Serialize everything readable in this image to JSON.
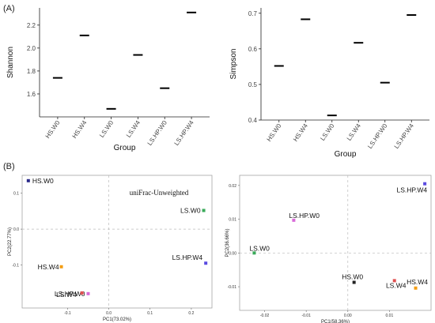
{
  "panel_labels": {
    "a": "(A)",
    "b": "(B)"
  },
  "chart_data": [
    {
      "type": "scatter",
      "markers": "horizontal-bar",
      "xlabel": "Group",
      "ylabel": "Shannon",
      "categories": [
        "HS.W0",
        "HS.W4",
        "LS.W0",
        "LS.W4",
        "LS.HP.W0",
        "LS.HP.W4"
      ],
      "values": [
        1.74,
        2.11,
        1.47,
        1.94,
        1.65,
        2.31
      ],
      "ylim": [
        1.4,
        2.35
      ],
      "yticks": [
        "1.6",
        "1.8",
        "2.0",
        "2.2"
      ],
      "grid": false
    },
    {
      "type": "scatter",
      "markers": "horizontal-bar",
      "xlabel": "Group",
      "ylabel": "Simpson",
      "categories": [
        "HS.W0",
        "HS.W4",
        "LS.W0",
        "LS.W4",
        "LS.HP.W0",
        "LS.HP.W4"
      ],
      "values": [
        0.552,
        0.683,
        0.413,
        0.617,
        0.505,
        0.695
      ],
      "ylim": [
        0.4,
        0.715
      ],
      "yticks": [
        "0.4",
        "0.5",
        "0.6",
        "0.7"
      ],
      "grid": false
    },
    {
      "type": "scatter",
      "annotation": "uniFrac-Unweighted",
      "xlabel": "PC1(73.02%)",
      "ylabel": "PC2(22.77%)",
      "xlim": [
        -0.21,
        0.25
      ],
      "ylim": [
        -0.22,
        0.15
      ],
      "xticks": [
        "-0.1",
        "0.0",
        "0.1",
        "0.2"
      ],
      "yticks": [
        "-0.1",
        "0.0",
        "0.1"
      ],
      "reference_lines": [
        0,
        0
      ],
      "points": [
        {
          "label": "HS.W0",
          "x": -0.195,
          "y": 0.135,
          "color": "#2a2a8a"
        },
        {
          "label": "LS.W0",
          "x": 0.23,
          "y": 0.052,
          "color": "#3aaa5a"
        },
        {
          "label": "LS.HP.W4",
          "x": 0.235,
          "y": -0.095,
          "color": "#5a4ae0"
        },
        {
          "label": "HS.W4",
          "x": -0.115,
          "y": -0.105,
          "color": "#f39c12"
        },
        {
          "label": "LS.HP.W0",
          "x": -0.05,
          "y": -0.18,
          "color": "#d86ad8"
        },
        {
          "label": "LS.W4",
          "x": -0.065,
          "y": -0.178,
          "color": "#e05050"
        }
      ]
    },
    {
      "type": "scatter",
      "xlabel": "PC1(58.36%)",
      "ylabel": "PC2(36.66%)",
      "xlim": [
        -0.026,
        0.02
      ],
      "ylim": [
        -0.017,
        0.023
      ],
      "xticks": [
        "-0.02",
        "-0.01",
        "0.00",
        "0.01"
      ],
      "yticks": [
        "-0.01",
        "0.00",
        "0.01",
        "0.02"
      ],
      "reference_lines": [
        0,
        0
      ],
      "points": [
        {
          "label": "LS.HP.W4",
          "x": 0.0185,
          "y": 0.0205,
          "color": "#5a4ae0"
        },
        {
          "label": "LS.HP.W0",
          "x": -0.013,
          "y": 0.0097,
          "color": "#d86ad8"
        },
        {
          "label": "LS.W0",
          "x": -0.0225,
          "y": 0.0,
          "color": "#3aaa5a"
        },
        {
          "label": "HS.W0",
          "x": 0.0015,
          "y": -0.0087,
          "color": "#222222"
        },
        {
          "label": "LS.W4",
          "x": 0.0112,
          "y": -0.0082,
          "color": "#e05050"
        },
        {
          "label": "HS.W4",
          "x": 0.0163,
          "y": -0.0104,
          "color": "#f39c12"
        }
      ]
    }
  ]
}
